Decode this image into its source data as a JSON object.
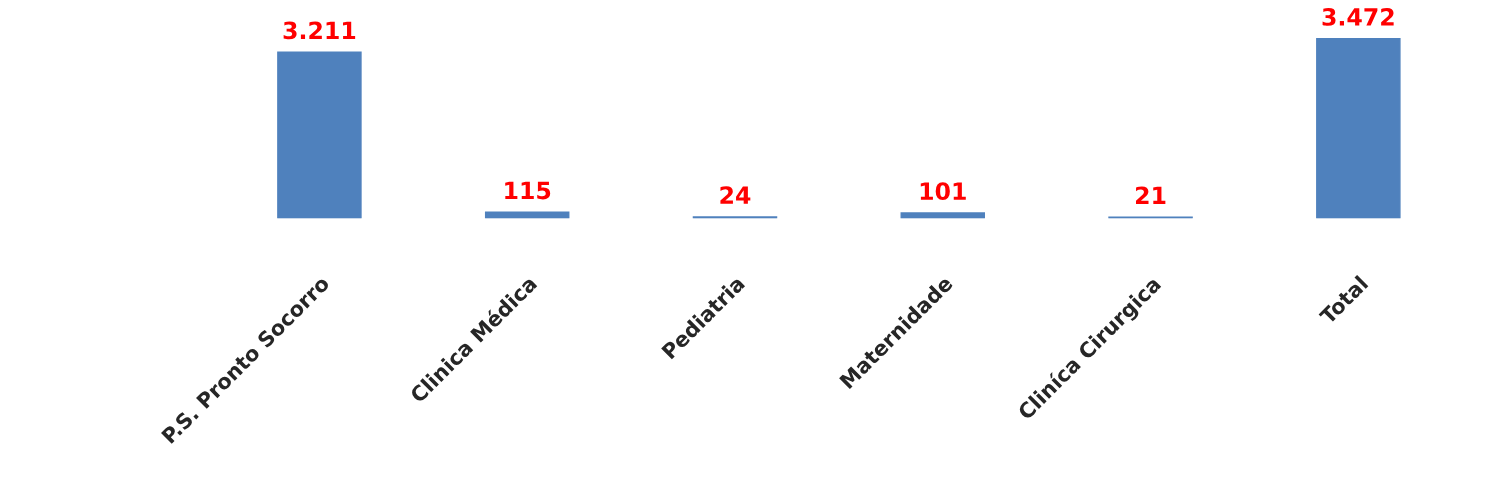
{
  "chart_data": {
    "type": "bar",
    "categories": [
      "P.S. Pronto Socorro",
      "Clinica Médica",
      "Pediatria",
      "Maternidade",
      "Cliníca Cirurgica",
      "Total"
    ],
    "values": [
      3211,
      115,
      24,
      101,
      21,
      3472
    ],
    "value_labels": [
      "3.211",
      "115",
      "24",
      "101",
      "21",
      "3.472"
    ],
    "color": "#4f81bd"
  }
}
